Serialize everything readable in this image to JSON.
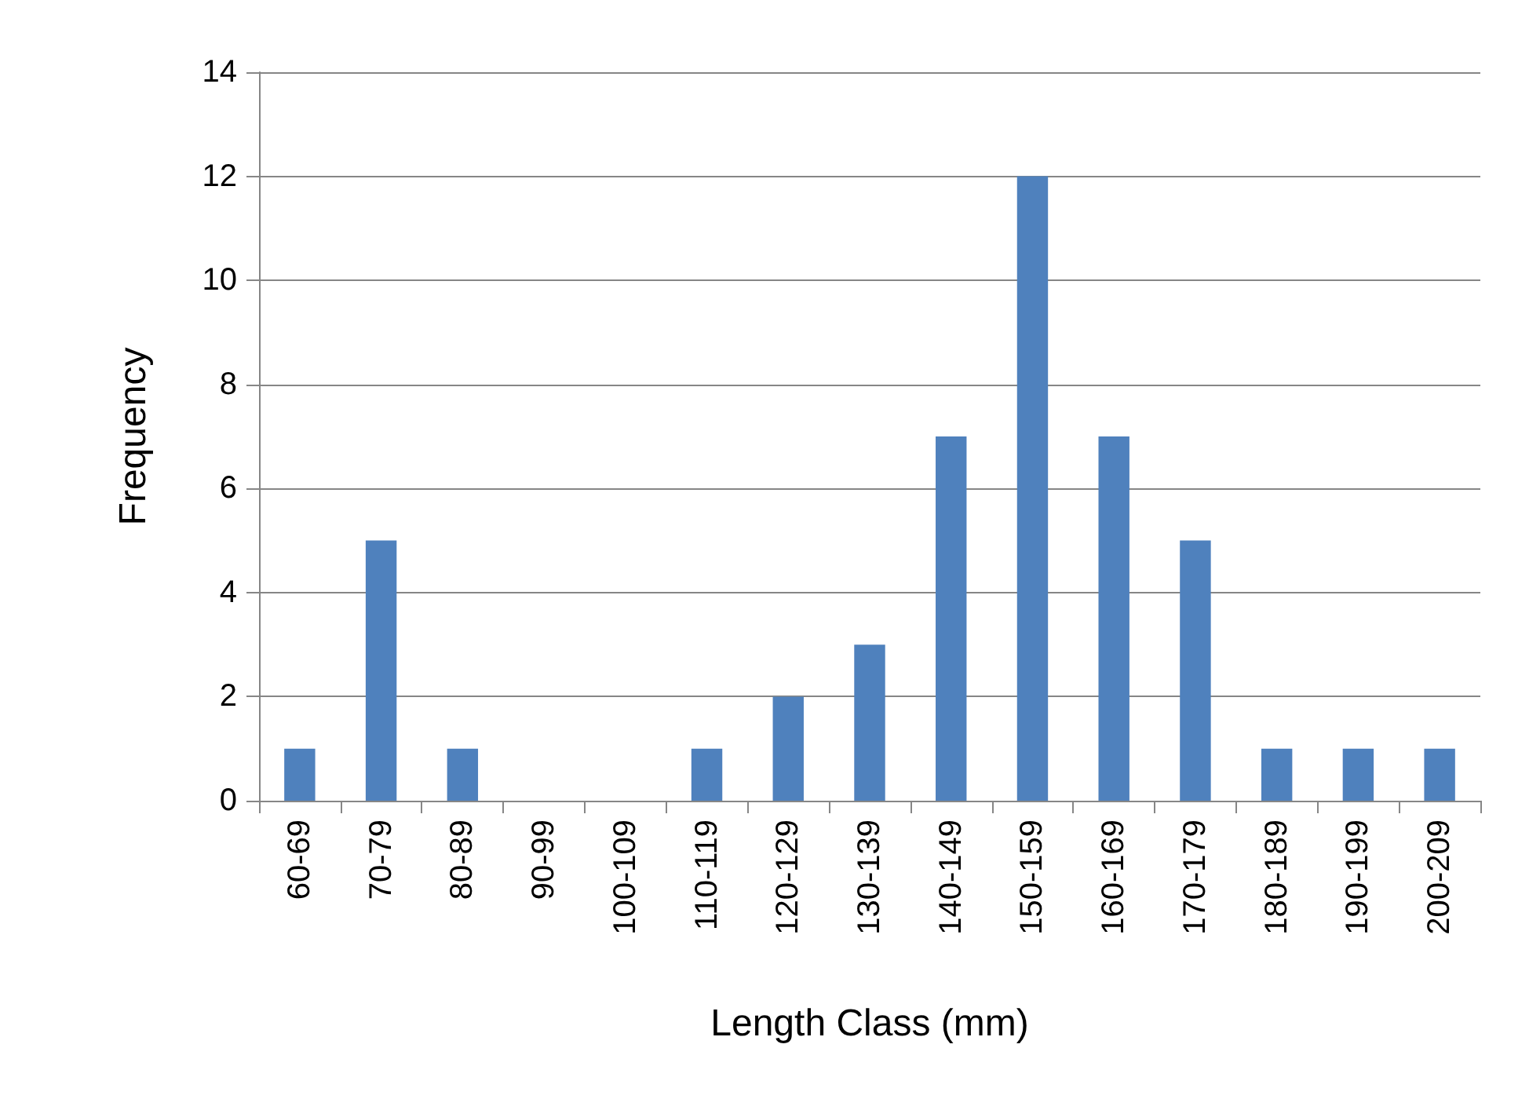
{
  "chart_data": {
    "type": "bar",
    "xlabel": "Length Class (mm)",
    "ylabel": "Frequency",
    "categories": [
      "60-69",
      "70-79",
      "80-89",
      "90-99",
      "100-109",
      "110-119",
      "120-129",
      "130-139",
      "140-149",
      "150-159",
      "160-169",
      "170-179",
      "180-189",
      "190-199",
      "200-209"
    ],
    "values": [
      1,
      5,
      1,
      0,
      0,
      1,
      2,
      3,
      7,
      12,
      7,
      5,
      1,
      1,
      1
    ],
    "color": "#4f81bd",
    "ylim": [
      0,
      14
    ],
    "yticks": [
      0,
      2,
      4,
      6,
      8,
      10,
      12,
      14
    ],
    "grid": "y"
  }
}
